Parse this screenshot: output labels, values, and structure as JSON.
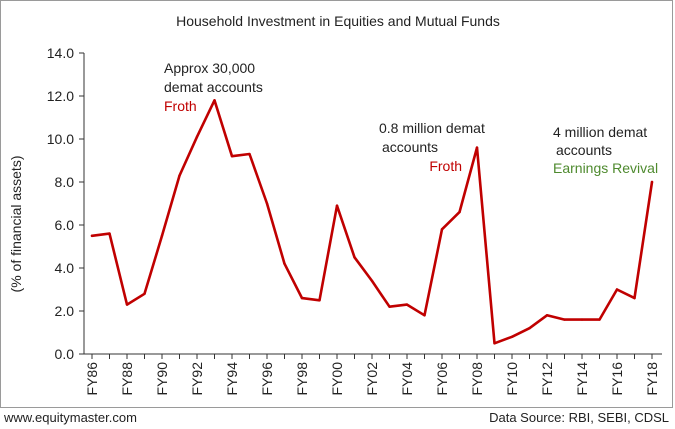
{
  "chart_data": {
    "type": "line",
    "title": "Household Investment in Equities and Mutual Funds",
    "ylabel": "(% of financial assets)",
    "xlabel": "",
    "ylim": [
      0,
      14
    ],
    "yticks": [
      "0.0",
      "2.0",
      "4.0",
      "6.0",
      "8.0",
      "10.0",
      "12.0",
      "14.0"
    ],
    "grid": false,
    "x": [
      "FY86",
      "FY87",
      "FY88",
      "FY89",
      "FY90",
      "FY91",
      "FY92",
      "FY93",
      "FY94",
      "FY95",
      "FY96",
      "FY97",
      "FY98",
      "FY99",
      "FY00",
      "FY01",
      "FY02",
      "FY03",
      "FY04",
      "FY05",
      "FY06",
      "FY07",
      "FY08",
      "FY09",
      "FY10",
      "FY11",
      "FY12",
      "FY13",
      "FY14",
      "FY15",
      "FY16",
      "FY17",
      "FY18"
    ],
    "xtick_labels": [
      "FY86",
      "",
      "FY88",
      "",
      "FY90",
      "",
      "FY92",
      "",
      "FY94",
      "",
      "FY96",
      "",
      "FY98",
      "",
      "FY00",
      "",
      "FY02",
      "",
      "FY04",
      "",
      "FY06",
      "",
      "FY08",
      "",
      "FY10",
      "",
      "FY12",
      "",
      "FY14",
      "",
      "FY16",
      "",
      "FY18"
    ],
    "series": [
      {
        "color": "#c00000",
        "values": [
          5.5,
          5.6,
          2.3,
          2.8,
          5.5,
          8.3,
          10.1,
          11.8,
          9.2,
          9.3,
          7.0,
          4.2,
          2.6,
          2.5,
          6.9,
          4.5,
          3.4,
          2.2,
          2.3,
          1.8,
          5.8,
          6.6,
          9.6,
          0.5,
          0.8,
          1.2,
          1.8,
          1.6,
          1.6,
          1.6,
          3.0,
          2.6,
          8.0
        ]
      }
    ],
    "annotations": [
      {
        "lines": [
          "Approx 30,000",
          "demat accounts"
        ],
        "tag": "Froth",
        "tag_color": "#c00000"
      },
      {
        "lines": [
          "0.8 million demat",
          "accounts"
        ],
        "tag": "Froth",
        "tag_color": "#c00000"
      },
      {
        "lines": [
          "4 million demat",
          "accounts"
        ],
        "tag": "Earnings Revival",
        "tag_color": "#4e8a2e"
      }
    ]
  },
  "footer": {
    "source_left": "www.equitymaster.com",
    "source_right": "Data Source: RBI, SEBI, CDSL"
  }
}
